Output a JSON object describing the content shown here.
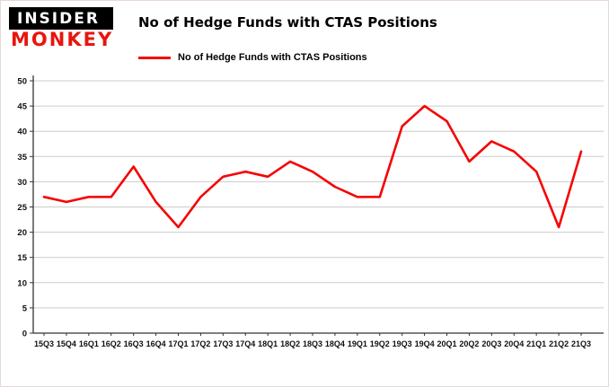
{
  "logo": {
    "line1": "INSIDER",
    "line2": "MONKEY"
  },
  "header": {
    "title": "No of Hedge Funds with CTAS Positions"
  },
  "legend": {
    "label": "No of Hedge Funds with CTAS Positions",
    "color": "#f50404"
  },
  "chart_data": {
    "type": "line",
    "title": "No of Hedge Funds with CTAS Positions",
    "categories": [
      "15Q3",
      "15Q4",
      "16Q1",
      "16Q2",
      "16Q3",
      "16Q4",
      "17Q1",
      "17Q2",
      "17Q3",
      "17Q4",
      "18Q1",
      "18Q2",
      "18Q3",
      "18Q4",
      "19Q1",
      "19Q2",
      "19Q3",
      "19Q4",
      "20Q1",
      "20Q2",
      "20Q3",
      "20Q4",
      "21Q1",
      "21Q2",
      "21Q3"
    ],
    "series": [
      {
        "name": "No of Hedge Funds with CTAS Positions",
        "color": "#f50404",
        "values": [
          27,
          26,
          27,
          27,
          33,
          26,
          21,
          27,
          31,
          32,
          31,
          34,
          32,
          29,
          27,
          27,
          41,
          45,
          42,
          34,
          38,
          36,
          32,
          21,
          36
        ]
      }
    ],
    "xlabel": "",
    "ylabel": "",
    "ylim": [
      0,
      50
    ],
    "ytick_interval": 5,
    "grid": true,
    "grid_color": "#cccccc",
    "legend_position": "top-left"
  }
}
